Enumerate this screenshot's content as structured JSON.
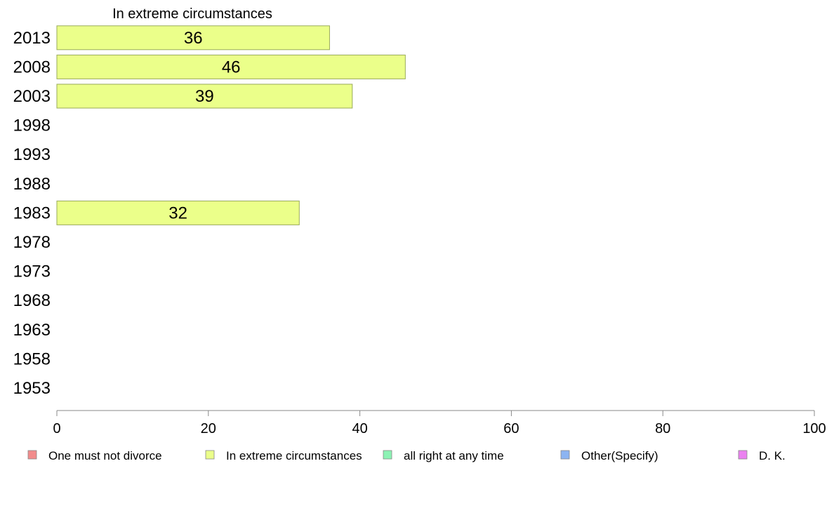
{
  "chart_data": {
    "type": "bar",
    "orientation": "horizontal",
    "title": "In extreme circumstances",
    "xlabel": "",
    "ylabel": "",
    "xlim": [
      0,
      100
    ],
    "x_ticks": [
      0,
      20,
      40,
      60,
      80,
      100
    ],
    "grid": false,
    "categories": [
      "2013",
      "2008",
      "2003",
      "1998",
      "1993",
      "1988",
      "1983",
      "1978",
      "1973",
      "1968",
      "1963",
      "1958",
      "1953"
    ],
    "series": [
      {
        "name": "In extreme circumstances",
        "color": "#ebff8a",
        "values": [
          36,
          46,
          39,
          null,
          null,
          null,
          32,
          null,
          null,
          null,
          null,
          null,
          null
        ]
      }
    ],
    "legend": {
      "position": "bottom",
      "items": [
        {
          "label": "One must not divorce",
          "color": "#f28c8c"
        },
        {
          "label": "In extreme circumstances",
          "color": "#ebff8a"
        },
        {
          "label": "all right at any time",
          "color": "#8cf2b4"
        },
        {
          "label": "Other(Specify)",
          "color": "#8cb4f2"
        },
        {
          "label": "D. K.",
          "color": "#eb82f0"
        }
      ]
    }
  }
}
